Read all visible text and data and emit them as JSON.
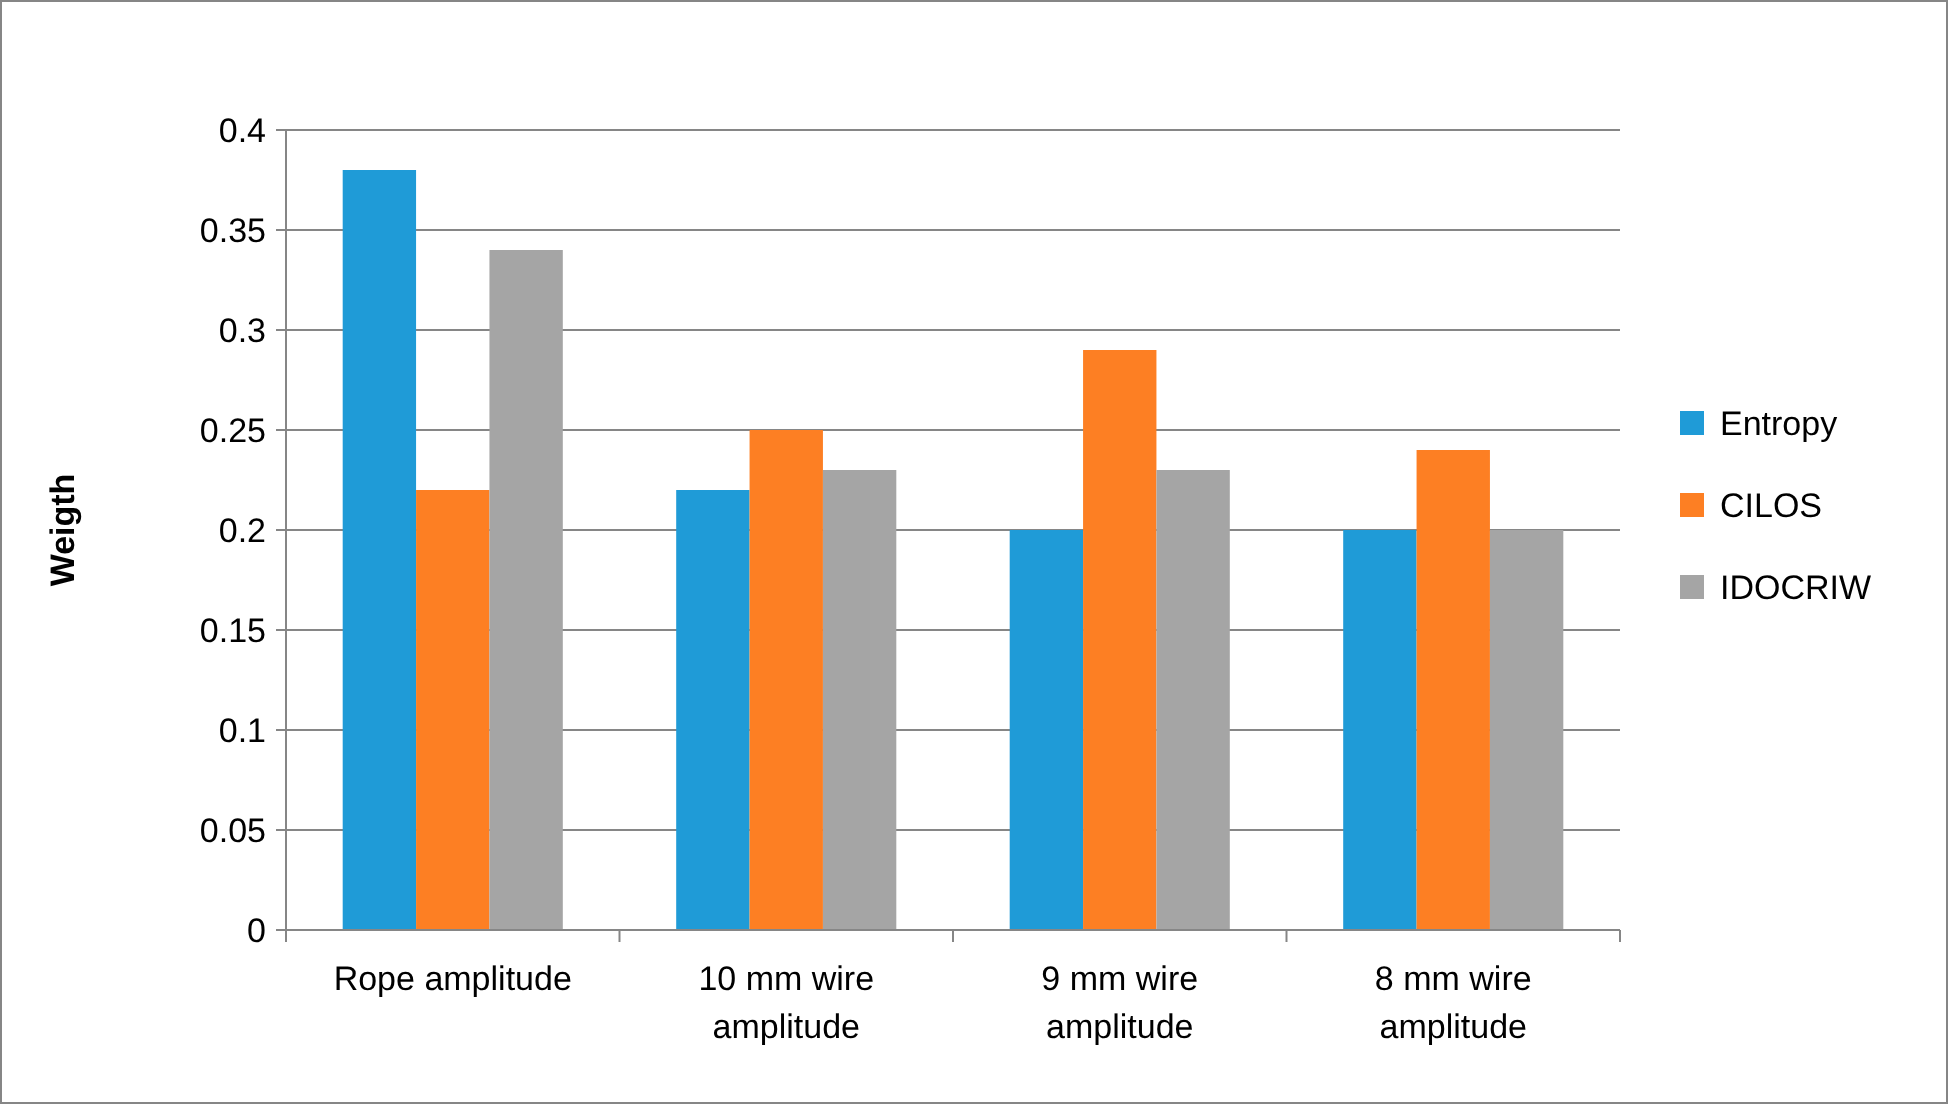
{
  "chart_data": {
    "type": "bar",
    "ylabel": "Weigth",
    "categories": [
      "Rope amplitude",
      "10 mm wire amplitude",
      "9 mm wire amplitude",
      "8 mm wire amplitude"
    ],
    "series": [
      {
        "name": "Entropy",
        "color": "#1f9bd7",
        "values": [
          0.38,
          0.22,
          0.2,
          0.2
        ]
      },
      {
        "name": "CILOS",
        "color": "#fd7f23",
        "values": [
          0.22,
          0.25,
          0.29,
          0.24
        ]
      },
      {
        "name": "IDOCRIW",
        "color": "#a5a5a5",
        "values": [
          0.34,
          0.23,
          0.23,
          0.2
        ]
      }
    ],
    "ylim": [
      0,
      0.4
    ],
    "yticks": [
      0,
      0.05,
      0.1,
      0.15,
      0.2,
      0.25,
      0.3,
      0.35,
      0.4
    ],
    "grid": "y",
    "legend": "right"
  }
}
